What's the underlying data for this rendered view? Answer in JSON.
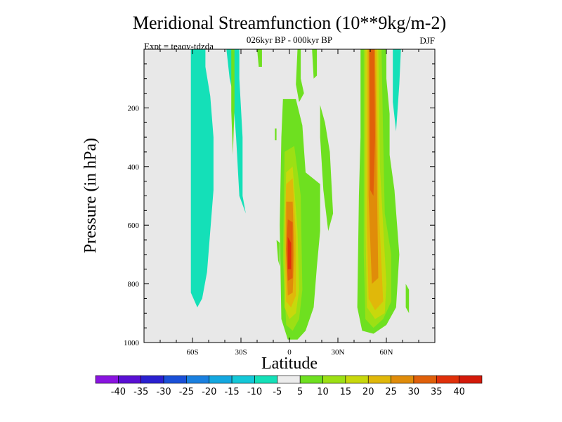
{
  "chart_data": {
    "type": "heatmap",
    "title": "Meridional Streamfunction (10**9kg/m-2)",
    "subtitle": "026kyr BP - 000kyr BP",
    "expt_label": "Expt = teaqy-tdzda",
    "season": "DJF",
    "xlabel": "Latitude",
    "ylabel": "Pressure (in hPa)",
    "xlim": [
      -90,
      90
    ],
    "ylim": [
      0,
      1000
    ],
    "y_reversed": true,
    "x_ticks": [
      {
        "value": -60,
        "label": "60S"
      },
      {
        "value": -30,
        "label": "30S"
      },
      {
        "value": 0,
        "label": "0"
      },
      {
        "value": 30,
        "label": "30N"
      },
      {
        "value": 60,
        "label": "60N"
      }
    ],
    "y_ticks": [
      {
        "value": 200,
        "label": "200"
      },
      {
        "value": 400,
        "label": "400"
      },
      {
        "value": 600,
        "label": "600"
      },
      {
        "value": 800,
        "label": "800"
      },
      {
        "value": 1000,
        "label": "1000"
      }
    ],
    "colorbar": {
      "levels": [
        -40,
        -35,
        -30,
        -25,
        -20,
        -15,
        -10,
        -5,
        5,
        10,
        15,
        20,
        25,
        30,
        35,
        40
      ],
      "colors": [
        "#8a14e0",
        "#5a10d4",
        "#2a20d0",
        "#1a50d8",
        "#1a80e0",
        "#14a8e0",
        "#14c8d8",
        "#14e0b8",
        "#ececec",
        "#6ee020",
        "#9ce014",
        "#c8d80c",
        "#e0b80a",
        "#e08c0a",
        "#e0600a",
        "#e0300a",
        "#d41a0a"
      ]
    },
    "regions": [
      {
        "level": -5,
        "polygon": [
          [
            -61,
            0
          ],
          [
            -52,
            0
          ],
          [
            -52,
            60
          ],
          [
            -49,
            160
          ],
          [
            -47,
            300
          ],
          [
            -47,
            480
          ],
          [
            -49,
            620
          ],
          [
            -51,
            760
          ],
          [
            -54,
            850
          ],
          [
            -57,
            880
          ],
          [
            -61,
            830
          ],
          [
            -61,
            0
          ]
        ]
      },
      {
        "level": -5,
        "polygon": [
          [
            -39,
            0
          ],
          [
            -31,
            0
          ],
          [
            -31,
            100
          ],
          [
            -29,
            300
          ],
          [
            -29,
            500
          ],
          [
            -27,
            560
          ],
          [
            -31,
            500
          ],
          [
            -33,
            300
          ],
          [
            -35,
            150
          ],
          [
            -37,
            100
          ],
          [
            -39,
            0
          ]
        ]
      },
      {
        "level": 5,
        "polygon": [
          [
            -36,
            0
          ],
          [
            -34,
            0
          ],
          [
            -34,
            200
          ],
          [
            -35,
            360
          ],
          [
            -36,
            210
          ],
          [
            -36,
            0
          ]
        ]
      },
      {
        "level": 5,
        "polygon": [
          [
            -20,
            0
          ],
          [
            -17,
            0
          ],
          [
            -17,
            60
          ],
          [
            -19,
            60
          ],
          [
            -20,
            0
          ]
        ]
      },
      {
        "level": 5,
        "polygon": [
          [
            5,
            0
          ],
          [
            7,
            0
          ],
          [
            7,
            100
          ],
          [
            9,
            150
          ],
          [
            6,
            180
          ],
          [
            4,
            120
          ],
          [
            5,
            0
          ]
        ]
      },
      {
        "level": 5,
        "polygon": [
          [
            14,
            0
          ],
          [
            17,
            0
          ],
          [
            17,
            90
          ],
          [
            15,
            100
          ],
          [
            14,
            0
          ]
        ]
      },
      {
        "level": 5,
        "polygon": [
          [
            -9,
            270
          ],
          [
            -8,
            270
          ],
          [
            -8,
            310
          ],
          [
            -9,
            310
          ],
          [
            -9,
            270
          ]
        ]
      },
      {
        "level": 5,
        "polygon": [
          [
            -8,
            650
          ],
          [
            -6,
            660
          ],
          [
            -6,
            740
          ],
          [
            -7,
            720
          ],
          [
            -8,
            650
          ]
        ]
      },
      {
        "level": 5,
        "polygon": [
          [
            -4,
            880
          ],
          [
            -3,
            880
          ],
          [
            -3,
            900
          ],
          [
            -4,
            900
          ],
          [
            -4,
            880
          ]
        ]
      },
      {
        "level": 5,
        "polygon": [
          [
            -4,
            170
          ],
          [
            4,
            170
          ],
          [
            8,
            260
          ],
          [
            10,
            420
          ],
          [
            19,
            460
          ],
          [
            19,
            620
          ],
          [
            17,
            740
          ],
          [
            15,
            880
          ],
          [
            10,
            960
          ],
          [
            5,
            990
          ],
          [
            -1,
            990
          ],
          [
            -5,
            920
          ],
          [
            -6,
            600
          ],
          [
            -5,
            300
          ],
          [
            -4,
            170
          ]
        ]
      },
      {
        "level": 5,
        "polygon": [
          [
            19,
            190
          ],
          [
            22,
            250
          ],
          [
            25,
            350
          ],
          [
            27,
            560
          ],
          [
            24,
            620
          ],
          [
            21,
            480
          ],
          [
            19,
            300
          ],
          [
            19,
            190
          ]
        ]
      },
      {
        "level": 5,
        "polygon": [
          [
            44,
            0
          ],
          [
            60,
            0
          ],
          [
            60,
            100
          ],
          [
            62,
            220
          ],
          [
            62,
            360
          ],
          [
            65,
            480
          ],
          [
            68,
            700
          ],
          [
            66,
            880
          ],
          [
            60,
            940
          ],
          [
            52,
            970
          ],
          [
            45,
            960
          ],
          [
            42,
            880
          ],
          [
            43,
            500
          ],
          [
            44,
            300
          ],
          [
            44,
            0
          ]
        ]
      },
      {
        "level": 5,
        "polygon": [
          [
            72,
            800
          ],
          [
            74,
            820
          ],
          [
            74,
            900
          ],
          [
            72,
            880
          ],
          [
            72,
            800
          ]
        ]
      },
      {
        "level": -5,
        "polygon": [
          [
            64,
            0
          ],
          [
            69,
            0
          ],
          [
            68,
            120
          ],
          [
            66,
            280
          ],
          [
            64,
            180
          ],
          [
            64,
            0
          ]
        ]
      },
      {
        "level": 10,
        "polygon": [
          [
            -3,
            350
          ],
          [
            3,
            330
          ],
          [
            7,
            500
          ],
          [
            8,
            820
          ],
          [
            6,
            920
          ],
          [
            2,
            960
          ],
          [
            -2,
            940
          ],
          [
            -4,
            720
          ],
          [
            -3,
            350
          ]
        ]
      },
      {
        "level": 10,
        "polygon": [
          [
            46,
            0
          ],
          [
            57,
            0
          ],
          [
            58,
            300
          ],
          [
            59,
            560
          ],
          [
            63,
            700
          ],
          [
            63,
            860
          ],
          [
            58,
            920
          ],
          [
            52,
            950
          ],
          [
            47,
            920
          ],
          [
            46,
            700
          ],
          [
            46,
            0
          ]
        ]
      },
      {
        "level": 15,
        "polygon": [
          [
            -2,
            420
          ],
          [
            2,
            400
          ],
          [
            5,
            620
          ],
          [
            6,
            820
          ],
          [
            4,
            900
          ],
          [
            0,
            920
          ],
          [
            -3,
            880
          ],
          [
            -3,
            600
          ],
          [
            -2,
            420
          ]
        ]
      },
      {
        "level": 15,
        "polygon": [
          [
            47,
            0
          ],
          [
            55,
            0
          ],
          [
            56,
            400
          ],
          [
            60,
            800
          ],
          [
            59,
            900
          ],
          [
            53,
            920
          ],
          [
            48,
            880
          ],
          [
            47,
            600
          ],
          [
            47,
            0
          ]
        ]
      },
      {
        "level": 20,
        "polygon": [
          [
            -2,
            460
          ],
          [
            2,
            440
          ],
          [
            4,
            640
          ],
          [
            4,
            840
          ],
          [
            1,
            880
          ],
          [
            -2,
            860
          ],
          [
            -3,
            640
          ],
          [
            -2,
            460
          ]
        ]
      },
      {
        "level": 20,
        "polygon": [
          [
            48,
            0
          ],
          [
            54,
            0
          ],
          [
            55,
            500
          ],
          [
            58,
            860
          ],
          [
            53,
            890
          ],
          [
            49,
            850
          ],
          [
            48,
            600
          ],
          [
            48,
            0
          ]
        ]
      },
      {
        "level": 25,
        "polygon": [
          [
            -2,
            520
          ],
          [
            2,
            520
          ],
          [
            3,
            700
          ],
          [
            2,
            830
          ],
          [
            -1,
            840
          ],
          [
            -2,
            700
          ],
          [
            -2,
            520
          ]
        ]
      },
      {
        "level": 25,
        "polygon": [
          [
            49,
            0
          ],
          [
            53,
            0
          ],
          [
            54,
            400
          ],
          [
            55,
            780
          ],
          [
            51,
            800
          ],
          [
            49,
            500
          ],
          [
            49,
            0
          ]
        ]
      },
      {
        "level": 30,
        "polygon": [
          [
            -1,
            580
          ],
          [
            2,
            590
          ],
          [
            2,
            780
          ],
          [
            -1,
            790
          ],
          [
            -2,
            680
          ],
          [
            -1,
            580
          ]
        ]
      },
      {
        "level": 30,
        "polygon": [
          [
            49.5,
            0
          ],
          [
            52.5,
            0
          ],
          [
            53,
            300
          ],
          [
            52,
            500
          ],
          [
            50,
            480
          ],
          [
            49.5,
            0
          ]
        ]
      },
      {
        "level": 35,
        "polygon": [
          [
            -1,
            640
          ],
          [
            1,
            660
          ],
          [
            1,
            750
          ],
          [
            -1,
            750
          ],
          [
            -1,
            640
          ]
        ]
      }
    ]
  }
}
